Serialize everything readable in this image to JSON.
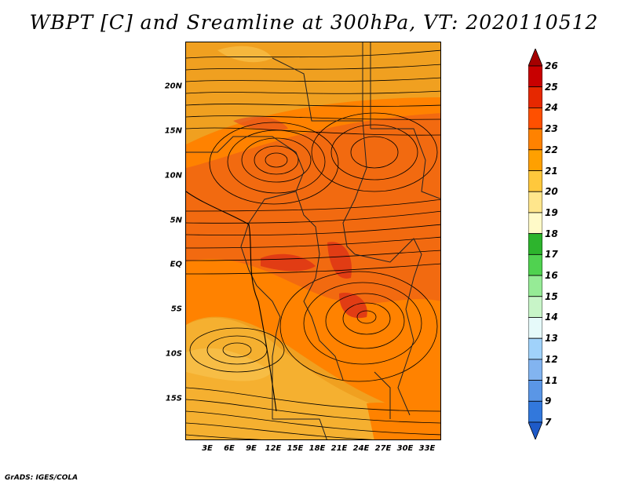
{
  "title": "WBPT [C] and Sreamline at 300hPa, VT: 2020110512",
  "credit": "GrADS: IGES/COLA",
  "y_axis_labels": [
    "20N",
    "15N",
    "10N",
    "5N",
    "EQ",
    "5S",
    "10S",
    "15S"
  ],
  "x_axis_labels": [
    "3E",
    "6E",
    "9E",
    "12E",
    "15E",
    "18E",
    "21E",
    "24E",
    "27E",
    "30E",
    "33E"
  ],
  "colorbar": {
    "labels": [
      "26",
      "25",
      "24",
      "23",
      "22",
      "21",
      "20",
      "19",
      "18",
      "17",
      "16",
      "15",
      "14",
      "13",
      "12",
      "11",
      "9",
      "7"
    ],
    "colors": [
      "#a50000",
      "#c80000",
      "#e62800",
      "#ff5000",
      "#ff8200",
      "#ffa000",
      "#ffc83c",
      "#ffe68c",
      "#fffac8",
      "#2db42d",
      "#50d250",
      "#96eb96",
      "#c8f5c8",
      "#e6fafa",
      "#a0d2fa",
      "#82b4f0",
      "#5a96e6",
      "#3278dc",
      "#1e5ac8"
    ]
  },
  "map": {
    "field": "wet-bulb potential temperature",
    "units": "C",
    "level": "300hPa",
    "valid_time": "2020110512",
    "lon_range": [
      0,
      35
    ],
    "lat_range": [
      -20,
      25
    ]
  }
}
